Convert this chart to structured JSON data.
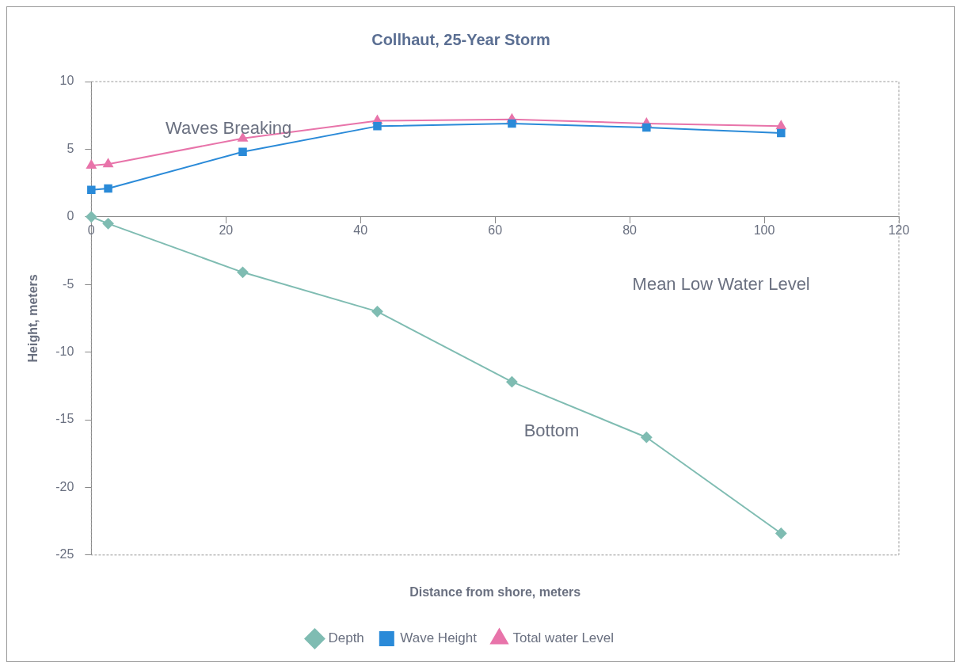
{
  "chart_data": {
    "type": "line",
    "title": "Collhaut, 25-Year Storm",
    "xlabel": "Distance from shore, meters",
    "ylabel": "Height, meters",
    "x": [
      0,
      2.5,
      22.5,
      42.5,
      62.5,
      82.5,
      102.5
    ],
    "series": [
      {
        "name": "Depth",
        "color": "#7fbcb2",
        "marker": "diamond",
        "values": [
          0,
          -0.5,
          -4.1,
          -7.0,
          -12.2,
          -16.3,
          -23.4
        ]
      },
      {
        "name": "Wave Height",
        "color": "#2a8ad8",
        "marker": "square",
        "values": [
          2.0,
          2.1,
          4.8,
          6.7,
          6.9,
          6.6,
          6.2
        ]
      },
      {
        "name": "Total water Level",
        "color": "#e874aa",
        "marker": "triangle",
        "values": [
          3.8,
          3.9,
          5.8,
          7.1,
          7.2,
          6.9,
          6.7
        ]
      }
    ],
    "xlim": [
      0,
      120
    ],
    "xticks": [
      0,
      20,
      40,
      60,
      80,
      100,
      120
    ],
    "ylim": [
      -25,
      10
    ],
    "yticks": [
      -25,
      -20,
      -15,
      -10,
      -5,
      0,
      5,
      10
    ],
    "annotations": [
      "Waves Breaking",
      "Mean Low Water Level",
      "Bottom"
    ],
    "grid": false,
    "legend": "bottom"
  }
}
